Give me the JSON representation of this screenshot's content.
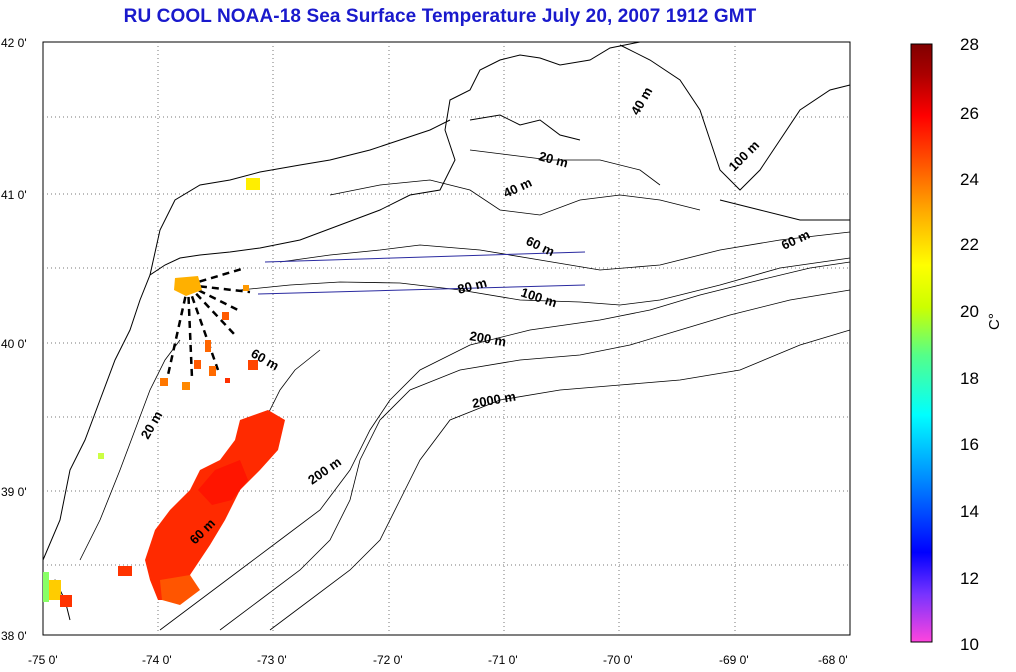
{
  "title": "RU COOL  NOAA-18 Sea Surface Temperature July 20, 2007 1912 GMT",
  "longitude_ticks": [
    "-75 0'",
    "-74 0'",
    "-73 0'",
    "-72 0'",
    "-71 0'",
    "-70 0'",
    "-69 0'",
    "-68 0'"
  ],
  "latitude_ticks": [
    "42 0'",
    "41 0'",
    "40 0'",
    "39 0'",
    "38 0'"
  ],
  "contour_labels": [
    "40 m",
    "20 m",
    "40 m",
    "100 m",
    "60 m",
    "60 m",
    "80 m",
    "100 m",
    "200 m",
    "60 m",
    "2000 m",
    "20 m",
    "200 m",
    "60 m"
  ],
  "colorbar": {
    "label": "C°",
    "ticks": [
      "28",
      "26",
      "24",
      "22",
      "20",
      "18",
      "16",
      "14",
      "12",
      "10"
    ],
    "range": [
      10,
      28
    ],
    "colors": [
      "#ff44dd",
      "#7733ff",
      "#0000ff",
      "#0088ff",
      "#00ffff",
      "#55ff88",
      "#ccff00",
      "#ffff00",
      "#ffaa00",
      "#ff5500",
      "#ff0000",
      "#aa0000",
      "#800000"
    ]
  }
}
